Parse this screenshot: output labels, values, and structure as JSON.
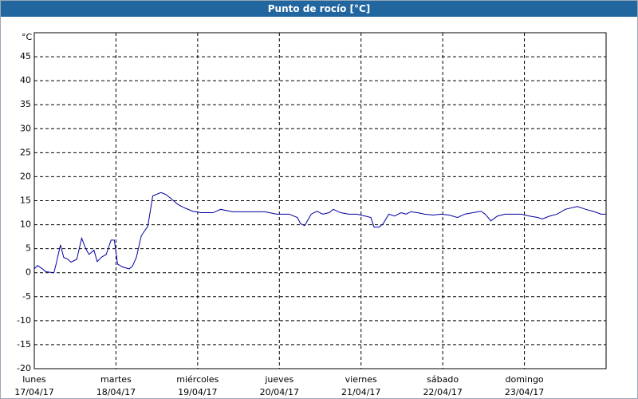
{
  "chart_data": {
    "type": "line",
    "title": "Punto de rocío [°C]",
    "y_unit": "°C",
    "xlim": [
      0,
      7
    ],
    "xticks": [
      {
        "value": 0,
        "label": "lunes",
        "date": "17/04/17"
      },
      {
        "value": 1,
        "label": "martes",
        "date": "18/04/17"
      },
      {
        "value": 2,
        "label": "miércoles",
        "date": "19/04/17"
      },
      {
        "value": 3,
        "label": "jueves",
        "date": "20/04/17"
      },
      {
        "value": 4,
        "label": "viernes",
        "date": "21/04/17"
      },
      {
        "value": 5,
        "label": "sábado",
        "date": "22/04/17"
      },
      {
        "value": 6,
        "label": "domingo",
        "date": "23/04/17"
      }
    ],
    "ylim": [
      -20,
      50
    ],
    "yticks": [
      -20,
      -15,
      -10,
      -5,
      0,
      5,
      10,
      15,
      20,
      25,
      30,
      35,
      40,
      45
    ],
    "grid": true,
    "color": "#0000a0",
    "x": [
      0,
      0.04,
      0.1,
      0.14,
      0.24,
      0.27,
      0.32,
      0.36,
      0.41,
      0.45,
      0.52,
      0.58,
      0.63,
      0.67,
      0.73,
      0.77,
      0.82,
      0.88,
      0.94,
      0.98,
      1.02,
      1.08,
      1.16,
      1.2,
      1.25,
      1.31,
      1.39,
      1.45,
      1.55,
      1.61,
      1.67,
      1.76,
      1.84,
      1.94,
      2.04,
      2.19,
      2.28,
      2.43,
      2.63,
      2.82,
      2.97,
      3.12,
      3.22,
      3.26,
      3.31,
      3.39,
      3.46,
      3.53,
      3.61,
      3.66,
      3.75,
      3.85,
      3.95,
      4.05,
      4.12,
      4.16,
      4.22,
      4.27,
      4.34,
      4.41,
      4.49,
      4.55,
      4.61,
      4.69,
      4.78,
      4.88,
      4.98,
      5.08,
      5.18,
      5.27,
      5.37,
      5.47,
      5.52,
      5.59,
      5.67,
      5.76,
      5.86,
      5.96,
      6.06,
      6.16,
      6.22,
      6.31,
      6.4,
      6.5,
      6.65,
      6.75,
      6.84,
      6.94,
      7
    ],
    "values": [
      0.8,
      1.5,
      0.8,
      0.2,
      0,
      2,
      5.8,
      3.2,
      2.8,
      2.2,
      2.8,
      7.2,
      5,
      3.8,
      4.7,
      2.3,
      3.2,
      3.8,
      6.8,
      6.8,
      1.8,
      1.2,
      0.8,
      1.3,
      3.2,
      7.7,
      9.7,
      16,
      16.7,
      16.3,
      15.5,
      14.2,
      13.5,
      12.8,
      12.5,
      12.5,
      13.2,
      12.7,
      12.7,
      12.7,
      12.2,
      12.2,
      11.5,
      10.2,
      9.8,
      12.2,
      12.8,
      12.2,
      12.5,
      13.2,
      12.5,
      12.2,
      12.2,
      11.8,
      11.5,
      9.5,
      9.5,
      10.2,
      12.2,
      11.8,
      12.5,
      12.2,
      12.7,
      12.5,
      12.2,
      12,
      12.2,
      12,
      11.5,
      12.2,
      12.5,
      12.8,
      12.2,
      10.8,
      11.8,
      12.2,
      12.2,
      12.2,
      11.8,
      11.5,
      11.2,
      11.8,
      12.2,
      13.2,
      13.8,
      13.2,
      12.8,
      12.2,
      12.2
    ]
  }
}
